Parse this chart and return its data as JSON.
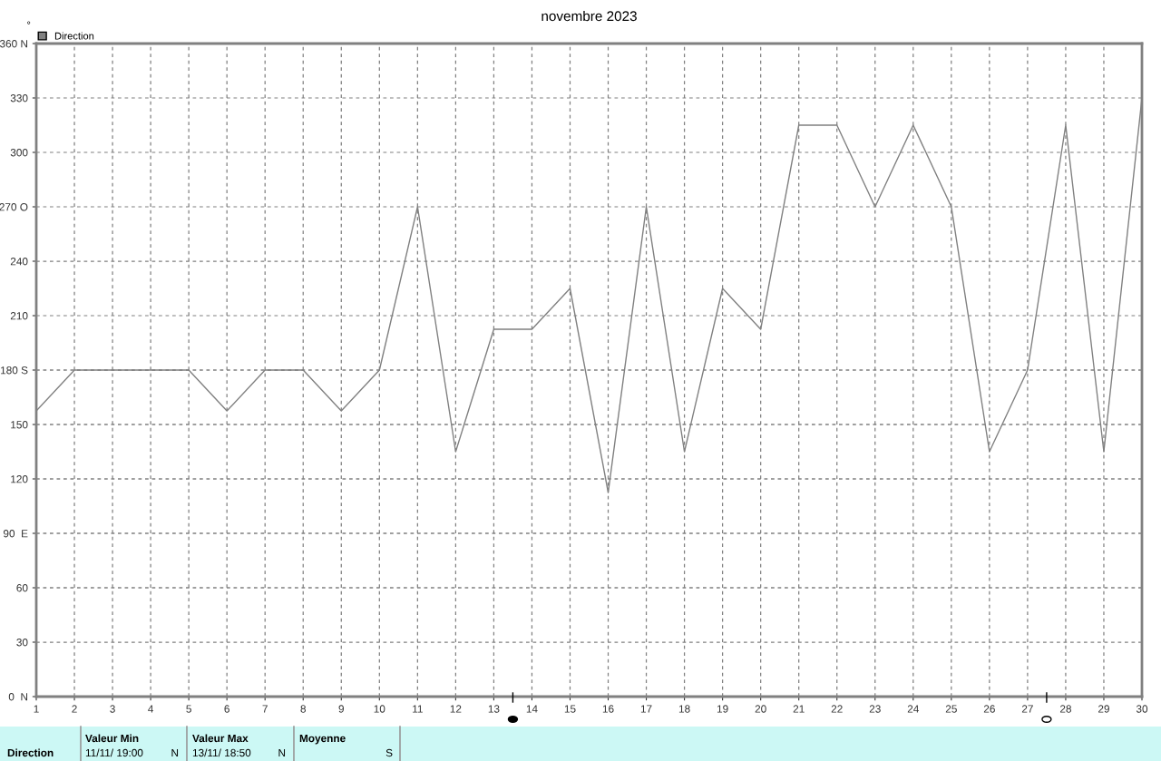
{
  "chart_data": {
    "type": "line",
    "title": "novembre 2023",
    "ylabel": "°",
    "x": [
      1,
      2,
      3,
      4,
      5,
      6,
      7,
      8,
      9,
      10,
      11,
      12,
      13,
      14,
      15,
      16,
      17,
      18,
      19,
      20,
      21,
      22,
      23,
      24,
      25,
      26,
      27,
      28,
      29,
      30
    ],
    "series": [
      {
        "name": "Direction",
        "color": "#808080",
        "values": [
          157.5,
          180,
          180,
          180,
          180,
          157.5,
          180,
          180,
          157.5,
          180,
          270,
          135,
          202.5,
          202.5,
          225,
          112.5,
          270,
          135,
          225,
          202.5,
          315,
          315,
          270,
          315,
          270,
          135,
          180,
          315,
          135,
          330
        ]
      }
    ],
    "xlim": [
      1,
      30
    ],
    "xticks": [
      1,
      2,
      3,
      4,
      5,
      6,
      7,
      8,
      9,
      10,
      11,
      12,
      13,
      14,
      15,
      16,
      17,
      18,
      19,
      20,
      21,
      22,
      23,
      24,
      25,
      26,
      27,
      28,
      29,
      30
    ],
    "ylim": [
      0,
      360
    ],
    "yticks": [
      {
        "value": 0,
        "label": "0  N"
      },
      30,
      60,
      {
        "value": 90,
        "label": "90  E"
      },
      120,
      150,
      {
        "value": 180,
        "label": "180 S"
      },
      210,
      240,
      {
        "value": 270,
        "label": "270 O"
      },
      300,
      330,
      {
        "value": 360,
        "label": "360 N"
      }
    ],
    "grid": true,
    "legend": "top left",
    "marker": "none",
    "line_style": "solid",
    "annotations": [
      "Direction",
      "Valeur Min",
      "11/11/ 19:00",
      "N",
      "Valeur Max",
      "13/11/ 18:50",
      "N",
      "Moyenne",
      "S"
    ]
  }
}
